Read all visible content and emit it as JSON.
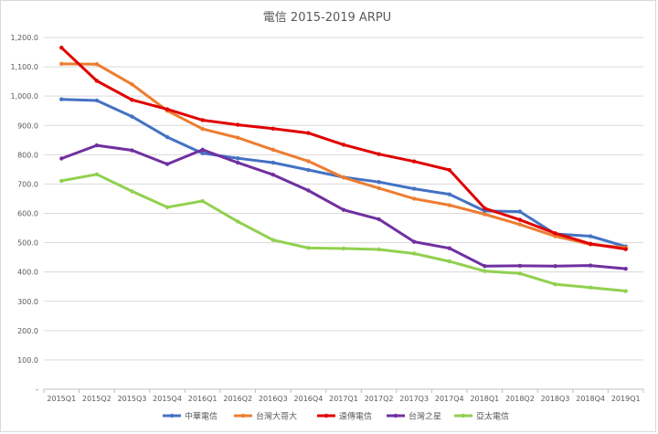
{
  "chart_data": {
    "type": "line",
    "title": "電信 2015-2019 ARPU",
    "xlabel": "",
    "ylabel": "",
    "ylim": [
      0,
      1200
    ],
    "yticks": [
      0,
      100,
      200,
      300,
      400,
      500,
      600,
      700,
      800,
      900,
      1000,
      1100,
      1200
    ],
    "ytick_labels": [
      "-",
      "100.0",
      "200.0",
      "300.0",
      "400.0",
      "500.0",
      "600.0",
      "700.0",
      "800.0",
      "900.0",
      "1,000.0",
      "1,100.0",
      "1,200.0"
    ],
    "categories": [
      "2015Q1",
      "2015Q2",
      "2015Q3",
      "2015Q4",
      "2016Q1",
      "2016Q2",
      "2016Q3",
      "2016Q4",
      "2017Q1",
      "2017Q2",
      "2017Q3",
      "2017Q4",
      "2018Q1",
      "2018Q2",
      "2018Q3",
      "2018Q4",
      "2019Q1"
    ],
    "grid": true,
    "legend_position": "bottom",
    "series": [
      {
        "name": "中華電信",
        "color": "#4472c4",
        "values": [
          989,
          985,
          930,
          860,
          805,
          788,
          773,
          748,
          723,
          707,
          684,
          665,
          608,
          606,
          530,
          522,
          487
        ]
      },
      {
        "name": "台灣大哥大",
        "color": "#ed7d31",
        "values": [
          1110,
          1109,
          1040,
          950,
          888,
          858,
          817,
          778,
          722,
          686,
          650,
          628,
          597,
          562,
          522,
          494,
          483
        ]
      },
      {
        "name": "遠傳電信",
        "color": "#e00000",
        "values": [
          1165,
          1052,
          987,
          955,
          918,
          902,
          889,
          874,
          834,
          802,
          777,
          748,
          617,
          578,
          532,
          496,
          478
        ]
      },
      {
        "name": "台灣之星",
        "color": "#7030a0",
        "values": [
          787,
          832,
          815,
          768,
          817,
          773,
          732,
          678,
          612,
          580,
          503,
          481,
          420,
          421,
          420,
          422,
          411
        ]
      },
      {
        "name": "亞太電信",
        "color": "#92d050",
        "values": [
          711,
          733,
          675,
          621,
          642,
          572,
          509,
          482,
          480,
          477,
          463,
          436,
          403,
          395,
          358,
          347,
          335
        ]
      }
    ]
  }
}
